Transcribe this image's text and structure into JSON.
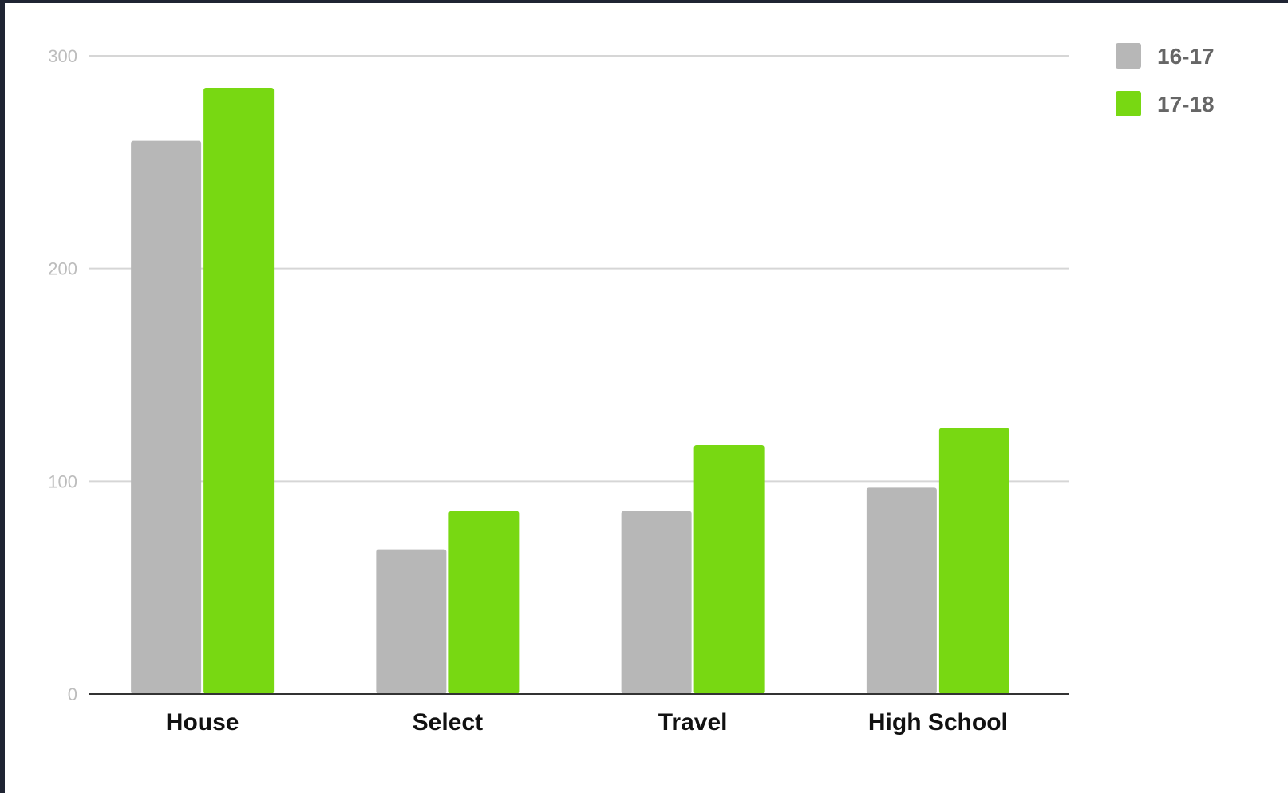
{
  "chart_data": {
    "type": "bar",
    "title": "",
    "xlabel": "",
    "ylabel": "",
    "categories": [
      "House",
      "Select",
      "Travel",
      "High School"
    ],
    "series": [
      {
        "name": "16-17",
        "color": "#b7b7b7",
        "values": [
          260,
          68,
          86,
          97
        ]
      },
      {
        "name": "17-18",
        "color": "#78d812",
        "values": [
          285,
          86,
          117,
          125
        ]
      }
    ],
    "ylim": [
      0,
      300
    ],
    "yticks": [
      0,
      100,
      200,
      300
    ],
    "grid": true,
    "legend_position": "right"
  }
}
